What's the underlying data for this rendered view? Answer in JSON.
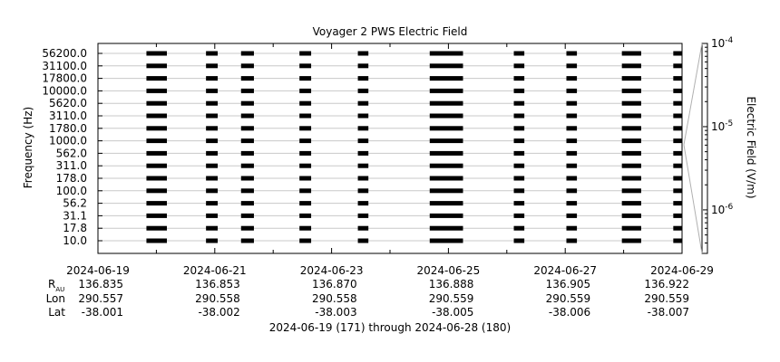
{
  "chart_data": {
    "type": "heatmap",
    "title": "Voyager 2 PWS Electric Field",
    "ylabel": "Frequency (Hz)",
    "colorbar_label": "Electric Field (V/m)",
    "colorbar_scale": "log",
    "colorbar_range": [
      3e-07,
      0.0001
    ],
    "colorbar_ticks": [
      {
        "value": 0.0001,
        "base": "10",
        "exp": "-4"
      },
      {
        "value": 1e-05,
        "base": "10",
        "exp": "-5"
      },
      {
        "value": 1e-06,
        "base": "10",
        "exp": "-6"
      }
    ],
    "frequency_channels": [
      "56200.0",
      "31100.0",
      "17800.0",
      "10000.0",
      "5620.0",
      "3110.0",
      "1780.0",
      "1000.0",
      "562.0",
      "311.0",
      "178.0",
      "100.0",
      "56.2",
      "31.1",
      "17.8",
      "10.0"
    ],
    "frequency_scale": "log",
    "x_range": [
      "2024-06-19",
      "2024-06-29"
    ],
    "x_ticks": [
      "2024-06-19",
      "2024-06-21",
      "2024-06-23",
      "2024-06-25",
      "2024-06-27",
      "2024-06-29"
    ],
    "ephemeris": {
      "labels": {
        "rau_main": "R",
        "rau_sub": "AU",
        "lon": "Lon",
        "lat": "Lat"
      },
      "rau": [
        "136.835",
        "136.853",
        "136.870",
        "136.888",
        "136.905",
        "136.922"
      ],
      "lon": [
        "290.557",
        "290.558",
        "290.558",
        "290.559",
        "290.559",
        "290.559"
      ],
      "lat": [
        "-38.001",
        "-38.002",
        "-38.003",
        "-38.005",
        "-38.006",
        "-38.007"
      ]
    },
    "date_range_label": "2024-06-19 (171) through 2024-06-28 (180)",
    "data_segments_days": [
      {
        "start": 0.83,
        "end": 1.18
      },
      {
        "start": 1.85,
        "end": 2.05
      },
      {
        "start": 2.45,
        "end": 2.67
      },
      {
        "start": 3.45,
        "end": 3.65
      },
      {
        "start": 4.45,
        "end": 4.63
      },
      {
        "start": 5.68,
        "end": 6.25
      },
      {
        "start": 7.12,
        "end": 7.3
      },
      {
        "start": 8.02,
        "end": 8.2
      },
      {
        "start": 8.97,
        "end": 9.3
      },
      {
        "start": 9.85,
        "end": 10.0
      }
    ]
  }
}
